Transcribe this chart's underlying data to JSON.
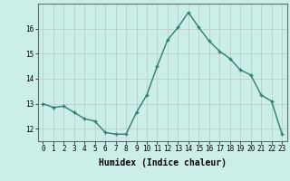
{
  "x": [
    0,
    1,
    2,
    3,
    4,
    5,
    6,
    7,
    8,
    9,
    10,
    11,
    12,
    13,
    14,
    15,
    16,
    17,
    18,
    19,
    20,
    21,
    22,
    23
  ],
  "y": [
    13.0,
    12.85,
    12.9,
    12.65,
    12.4,
    12.3,
    11.85,
    11.78,
    11.78,
    12.65,
    13.35,
    14.5,
    15.55,
    16.05,
    16.65,
    16.05,
    15.5,
    15.1,
    14.8,
    14.35,
    14.15,
    13.35,
    13.1,
    11.8
  ],
  "line_color": "#2e7d6e",
  "marker": "+",
  "marker_size": 3.5,
  "linewidth": 1.0,
  "bg_color": "#cceee8",
  "grid_color": "#b8c8c0",
  "xlabel": "Humidex (Indice chaleur)",
  "xlabel_fontsize": 7,
  "xlabel_bold": true,
  "ylim": [
    11.5,
    17.0
  ],
  "xlim": [
    -0.5,
    23.5
  ],
  "yticks": [
    12,
    13,
    14,
    15,
    16
  ],
  "xticks": [
    0,
    1,
    2,
    3,
    4,
    5,
    6,
    7,
    8,
    9,
    10,
    11,
    12,
    13,
    14,
    15,
    16,
    17,
    18,
    19,
    20,
    21,
    22,
    23
  ],
  "tick_fontsize": 5.5,
  "grid_alpha": 1.0
}
